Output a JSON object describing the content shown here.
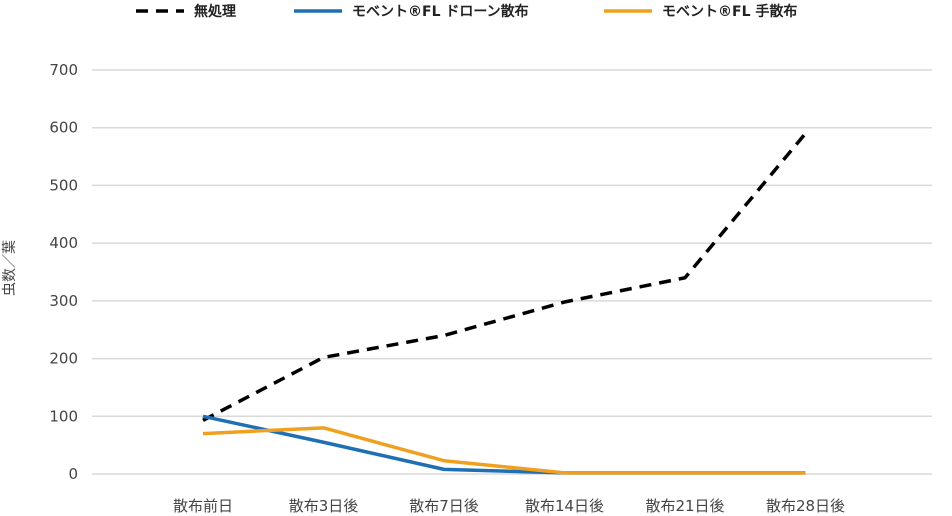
{
  "chart_data": {
    "type": "line",
    "title": "",
    "xlabel": "",
    "ylabel": "虫数／葉",
    "ylim": [
      0,
      700
    ],
    "yticks": [
      0,
      100,
      200,
      300,
      400,
      500,
      600,
      700
    ],
    "grid": true,
    "legend_position": "top",
    "categories": [
      "散布前日",
      "散布3日後",
      "散布7日後",
      "散布14日後",
      "散布21日後",
      "散布28日後"
    ],
    "series": [
      {
        "name": "無処理",
        "color": "#000000",
        "dash": "dashed",
        "values": [
          93,
          202,
          240,
          298,
          340,
          590
        ]
      },
      {
        "name": "モベント®FL ドローン散布",
        "color": "#1f6fb5",
        "dash": "solid",
        "values": [
          100,
          55,
          8,
          2,
          2,
          2
        ]
      },
      {
        "name": "モベント®FL 手散布",
        "color": "#f0a020",
        "dash": "solid",
        "values": [
          70,
          80,
          23,
          2,
          2,
          2
        ]
      }
    ]
  }
}
